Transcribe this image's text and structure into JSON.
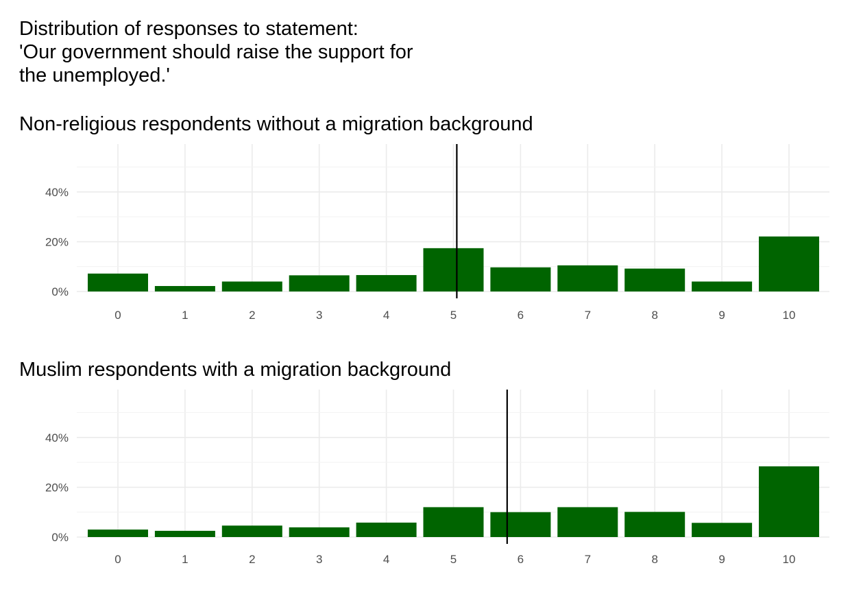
{
  "chart_data": {
    "type": "bar",
    "title_lines": [
      "Distribution of responses to statement:",
      "'Our government should raise the support for",
      "the unemployed.'"
    ],
    "bar_color": "#006400",
    "grid": true,
    "ylim": [
      0,
      0.6
    ],
    "y_ticks": [
      {
        "value": 0,
        "label": "0%"
      },
      {
        "value": 0.2,
        "label": "20%"
      },
      {
        "value": 0.4,
        "label": "40%"
      }
    ],
    "categories": [
      "0",
      "1",
      "2",
      "3",
      "4",
      "5",
      "6",
      "7",
      "8",
      "9",
      "10"
    ],
    "panels": [
      {
        "title": "Non-religious respondents without a migration background",
        "values": [
          0.072,
          0.022,
          0.04,
          0.065,
          0.066,
          0.174,
          0.097,
          0.105,
          0.092,
          0.04,
          0.221
        ],
        "reference_line_x": 5.05
      },
      {
        "title": "Muslim respondents with a migration background",
        "values": [
          0.03,
          0.025,
          0.046,
          0.039,
          0.058,
          0.12,
          0.1,
          0.12,
          0.101,
          0.057,
          0.284
        ],
        "reference_line_x": 5.8
      }
    ]
  }
}
